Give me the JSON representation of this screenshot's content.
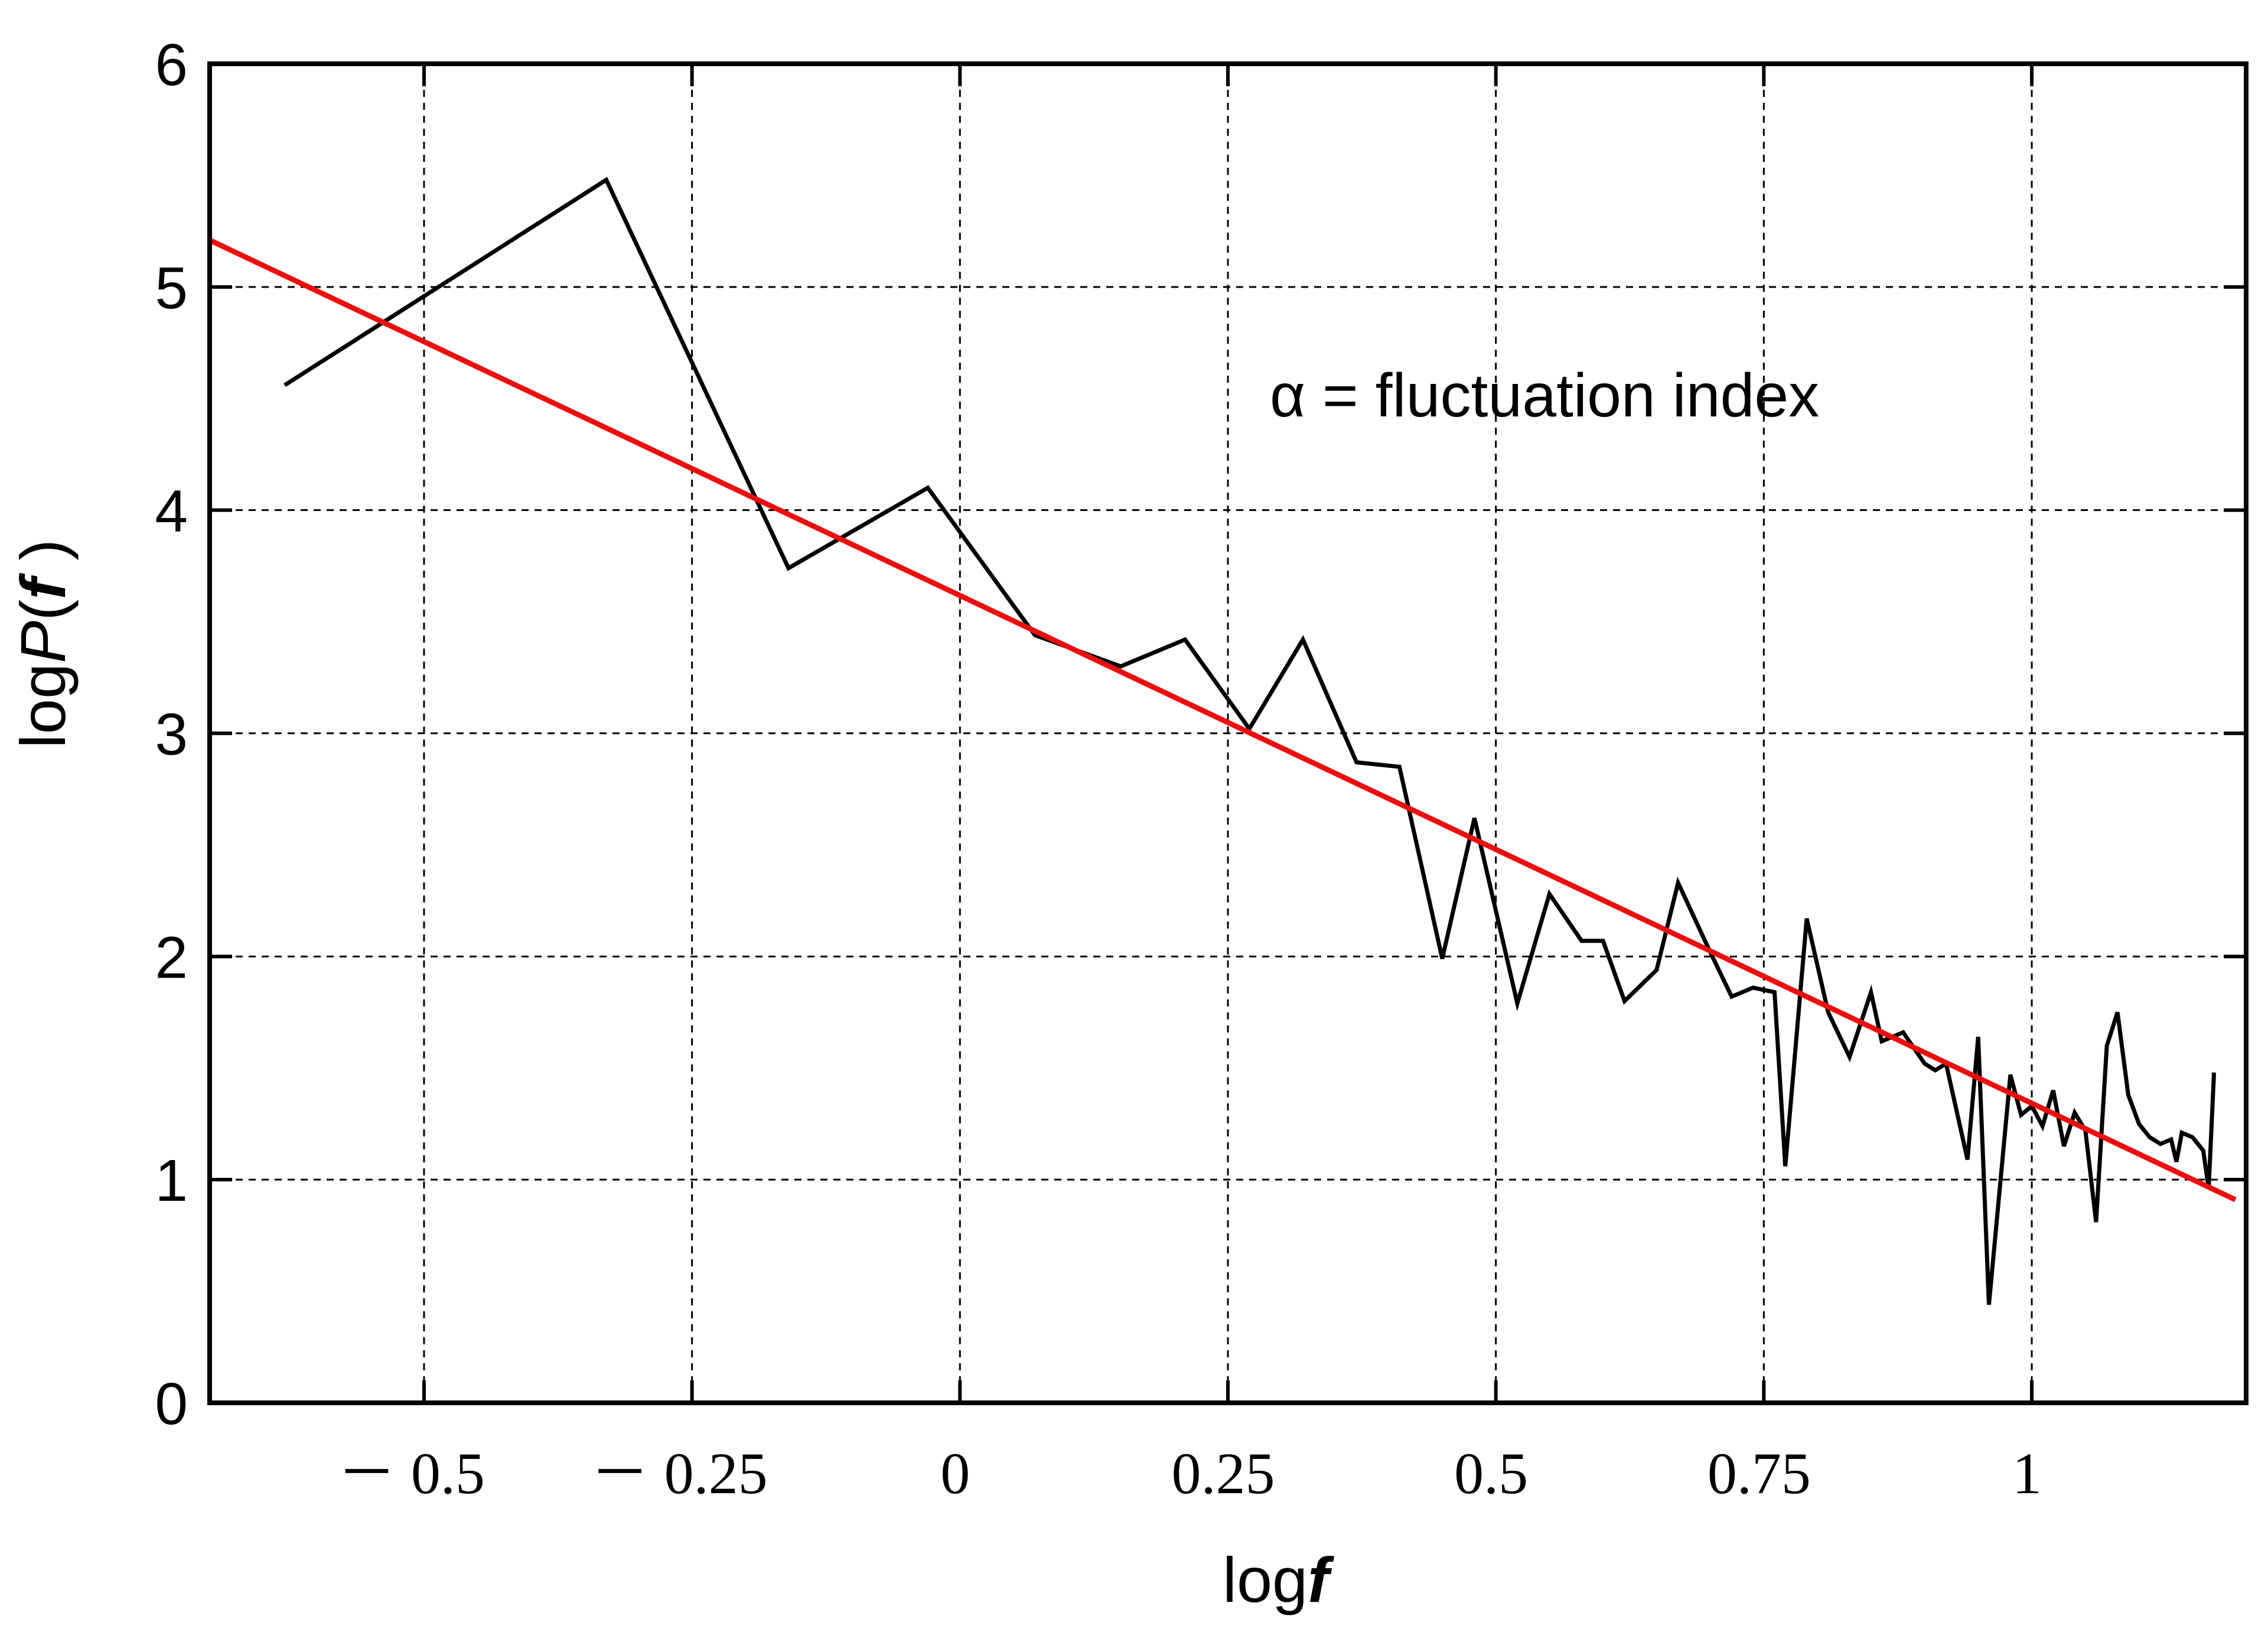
{
  "chart_data": {
    "type": "line",
    "xlabel": {
      "prefix": "log",
      "var": "f"
    },
    "ylabel": {
      "prefix": "log",
      "var1": "P",
      "open": "(",
      "var2": "f",
      "close": " )"
    },
    "annotation": "α = fluctuation index",
    "xlim": [
      -0.7,
      1.2
    ],
    "ylim": [
      0,
      6
    ],
    "grid": true,
    "x_ticks": [
      {
        "value": -0.5,
        "label": "－ 0.5"
      },
      {
        "value": -0.25,
        "label": "－ 0.25"
      },
      {
        "value": 0,
        "label": "0"
      },
      {
        "value": 0.25,
        "label": "0.25"
      },
      {
        "value": 0.5,
        "label": "0.5"
      },
      {
        "value": 0.75,
        "label": "0.75"
      },
      {
        "value": 1,
        "label": "1"
      }
    ],
    "y_ticks": [
      {
        "value": 0,
        "label": "0"
      },
      {
        "value": 1,
        "label": "1"
      },
      {
        "value": 2,
        "label": "2"
      },
      {
        "value": 3,
        "label": "3"
      },
      {
        "value": 4,
        "label": "4"
      },
      {
        "value": 5,
        "label": "5"
      },
      {
        "value": 6,
        "label": "6"
      }
    ],
    "colors": {
      "data": "#000000",
      "fit": "#e8100f",
      "grid": "#000000"
    },
    "series": [
      {
        "kind": "data",
        "color": "#000000",
        "points": [
          [
            -0.63,
            4.56
          ],
          [
            -0.33,
            5.48
          ],
          [
            -0.16,
            3.74
          ],
          [
            -0.03,
            4.1
          ],
          [
            0.07,
            3.44
          ],
          [
            0.15,
            3.3
          ],
          [
            0.21,
            3.42
          ],
          [
            0.27,
            3.02
          ],
          [
            0.32,
            3.42
          ],
          [
            0.37,
            2.87
          ],
          [
            0.41,
            2.85
          ],
          [
            0.45,
            1.99
          ],
          [
            0.48,
            2.62
          ],
          [
            0.52,
            1.79
          ],
          [
            0.55,
            2.28
          ],
          [
            0.58,
            2.07
          ],
          [
            0.6,
            2.07
          ],
          [
            0.62,
            1.8
          ],
          [
            0.65,
            1.94
          ],
          [
            0.67,
            2.33
          ],
          [
            0.7,
            2.02
          ],
          [
            0.72,
            1.82
          ],
          [
            0.74,
            1.86
          ],
          [
            0.76,
            1.84
          ],
          [
            0.77,
            1.06
          ],
          [
            0.79,
            2.17
          ],
          [
            0.81,
            1.75
          ],
          [
            0.83,
            1.55
          ],
          [
            0.85,
            1.84
          ],
          [
            0.86,
            1.62
          ],
          [
            0.88,
            1.66
          ],
          [
            0.9,
            1.52
          ],
          [
            0.91,
            1.49
          ],
          [
            0.92,
            1.52
          ],
          [
            0.94,
            1.09
          ],
          [
            0.95,
            1.64
          ],
          [
            0.96,
            0.44
          ],
          [
            0.98,
            1.47
          ],
          [
            0.99,
            1.29
          ],
          [
            1.0,
            1.33
          ],
          [
            1.01,
            1.24
          ],
          [
            1.02,
            1.4
          ],
          [
            1.03,
            1.15
          ],
          [
            1.04,
            1.3
          ],
          [
            1.05,
            1.22
          ],
          [
            1.06,
            0.81
          ],
          [
            1.07,
            1.6
          ],
          [
            1.08,
            1.75
          ],
          [
            1.09,
            1.38
          ],
          [
            1.1,
            1.25
          ],
          [
            1.11,
            1.19
          ],
          [
            1.12,
            1.16
          ],
          [
            1.13,
            1.18
          ],
          [
            1.135,
            1.08
          ],
          [
            1.14,
            1.21
          ],
          [
            1.15,
            1.19
          ],
          [
            1.16,
            1.13
          ],
          [
            1.165,
            0.96
          ],
          [
            1.17,
            1.48
          ]
        ]
      },
      {
        "kind": "fit",
        "color": "#e8100f",
        "points": [
          [
            -0.7,
            5.21
          ],
          [
            1.19,
            0.91
          ]
        ]
      }
    ]
  }
}
